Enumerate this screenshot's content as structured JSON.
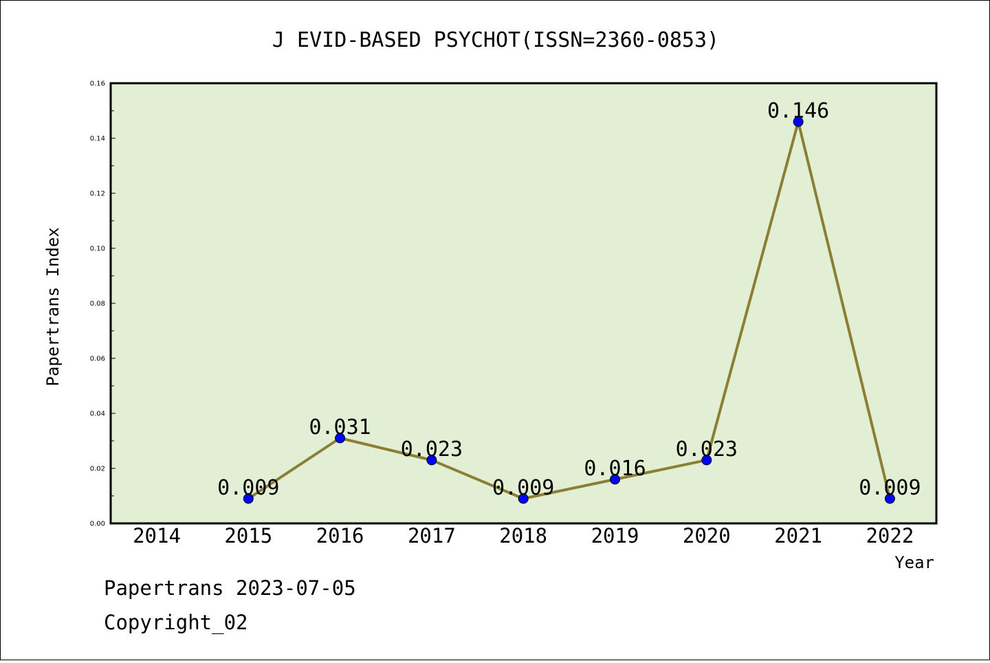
{
  "chart_data": {
    "type": "line",
    "title": "J EVID-BASED PSYCHOT(ISSN=2360-0853)",
    "xlabel": "Year",
    "ylabel": "Papertrans Index",
    "categories": [
      "2014",
      "2015",
      "2016",
      "2017",
      "2018",
      "2019",
      "2020",
      "2021",
      "2022"
    ],
    "x": [
      2015,
      2016,
      2017,
      2018,
      2019,
      2020,
      2021,
      2022
    ],
    "values": [
      0.009,
      0.031,
      0.023,
      0.009,
      0.016,
      0.023,
      0.146,
      0.009
    ],
    "data_labels": [
      "0.009",
      "0.031",
      "0.023",
      "0.009",
      "0.016",
      "0.023",
      "0.146",
      "0.009"
    ],
    "yticks": [
      "0.00",
      "0.02",
      "0.04",
      "0.06",
      "0.08",
      "0.10",
      "0.12",
      "0.14",
      "0.16"
    ],
    "ylim": [
      0,
      0.16
    ],
    "grid": false,
    "colors": {
      "line": "#8c7f35",
      "marker": "#0000ff",
      "plot_bg": "#e2efd4"
    }
  },
  "footer": {
    "date_line": "Papertrans 2023-07-05",
    "copyright": "Copyright_02"
  }
}
